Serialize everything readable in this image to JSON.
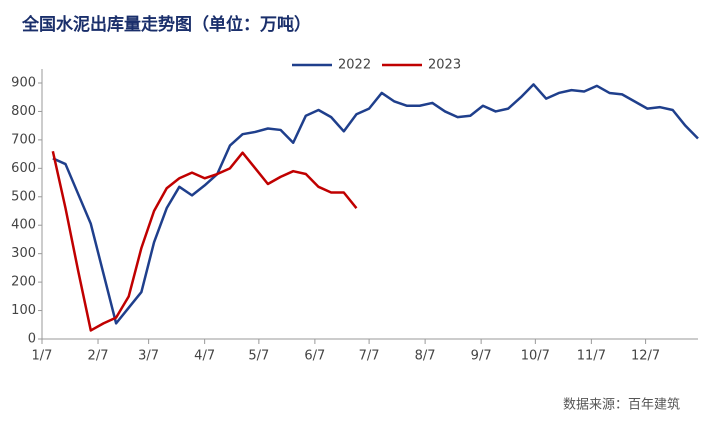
{
  "chart_data": {
    "type": "line",
    "title": "全国水泥出库量走势图（单位：万吨）",
    "source": "数据来源：百年建筑",
    "x": [
      13,
      20,
      27,
      34,
      41,
      48,
      55,
      62,
      69,
      76,
      83,
      90,
      97,
      104,
      111,
      118,
      125,
      132,
      139,
      146,
      153,
      160,
      167,
      174,
      181,
      188,
      195,
      202,
      209,
      216,
      223,
      230,
      237,
      244,
      251,
      258,
      265,
      272,
      279,
      286,
      293,
      300,
      307,
      314,
      321,
      328,
      335,
      342,
      349,
      356,
      363,
      370
    ],
    "xlim": [
      7,
      370
    ],
    "xticks": [
      {
        "value": 7,
        "label": "1/7"
      },
      {
        "value": 38,
        "label": "2/7"
      },
      {
        "value": 66,
        "label": "3/7"
      },
      {
        "value": 97,
        "label": "4/7"
      },
      {
        "value": 127,
        "label": "5/7"
      },
      {
        "value": 158,
        "label": "6/7"
      },
      {
        "value": 188,
        "label": "7/7"
      },
      {
        "value": 219,
        "label": "8/7"
      },
      {
        "value": 250,
        "label": "9/7"
      },
      {
        "value": 280,
        "label": "10/7"
      },
      {
        "value": 311,
        "label": "11/7"
      },
      {
        "value": 341,
        "label": "12/7"
      }
    ],
    "ylim": [
      0,
      900
    ],
    "yticks": [
      0,
      100,
      200,
      300,
      400,
      500,
      600,
      700,
      800,
      900
    ],
    "legend": "top",
    "series": [
      {
        "name": "2022",
        "color": "#1f3f8c",
        "values": [
          635,
          615,
          510,
          405,
          230,
          55,
          110,
          165,
          340,
          460,
          535,
          505,
          540,
          580,
          680,
          720,
          728,
          740,
          735,
          690,
          785,
          805,
          780,
          730,
          790,
          810,
          865,
          835,
          820,
          820,
          830,
          800,
          780,
          785,
          820,
          800,
          810,
          850,
          895,
          845,
          865,
          875,
          870,
          890,
          865,
          860,
          835,
          810,
          815,
          805,
          750,
          705
        ]
      },
      {
        "name": "2023",
        "color": "#c00000",
        "values": [
          660,
          460,
          240,
          30,
          55,
          75,
          150,
          320,
          450,
          530,
          565,
          585,
          565,
          580,
          600,
          655,
          600,
          545,
          570,
          590,
          580,
          535,
          515,
          515,
          460,
          null,
          null,
          null,
          null,
          null,
          null,
          null,
          null,
          null,
          null,
          null,
          null,
          null,
          null,
          null,
          null,
          null,
          null,
          null,
          null,
          null,
          null,
          null,
          null,
          null,
          null,
          null
        ]
      }
    ]
  }
}
